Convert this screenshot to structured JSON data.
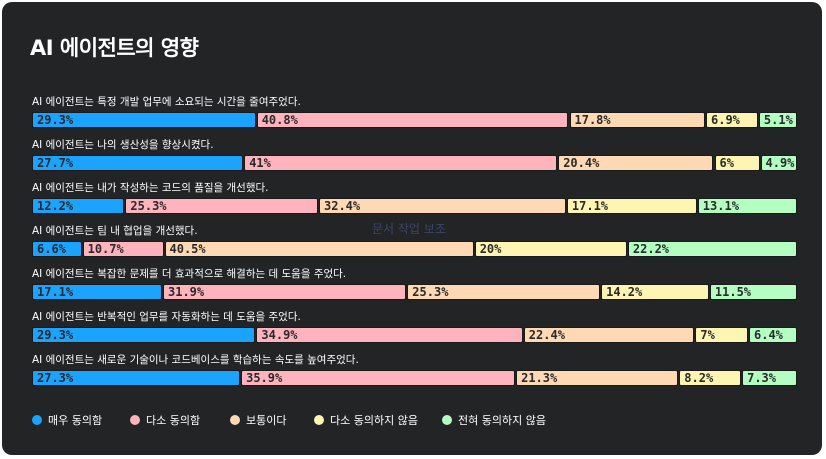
{
  "chart_data": {
    "type": "bar",
    "title": "AI 에이전트의 영향",
    "xlim": [
      0,
      100
    ],
    "categories": [
      "AI 에이전트는 특정 개발 업무에 소요되는 시간을 줄여주었다.",
      "AI 에이전트는 나의 생산성을 향상시켰다.",
      "AI 에이전트는 내가 작성하는 코드의 품질을 개선했다.",
      "AI 에이전트는 팀 내 협업을 개선했다.",
      "AI 에이전트는 복잡한 문제를 더 효과적으로 해결하는 데 도움을 주었다.",
      "AI 에이전트는 반복적인 업무를 자동화하는 데 도움을 주었다.",
      "AI 에이전트는 새로운 기술이나 코드베이스를 학습하는 속도를 높여주었다."
    ],
    "series": [
      {
        "name": "매우 동의함",
        "color": "#1aa3ff",
        "values": [
          29.3,
          27.7,
          12.2,
          6.6,
          17.1,
          29.3,
          27.3
        ]
      },
      {
        "name": "다소 동의함",
        "color": "#ffb3bd",
        "values": [
          40.8,
          41,
          25.3,
          10.7,
          31.9,
          34.9,
          35.9
        ]
      },
      {
        "name": "보통이다",
        "color": "#ffd9b3",
        "values": [
          17.8,
          20.4,
          32.4,
          40.5,
          25.3,
          22.4,
          21.3
        ]
      },
      {
        "name": "다소 동의하지 않음",
        "color": "#fff5b3",
        "values": [
          6.9,
          6,
          17.1,
          20,
          14.2,
          7,
          8.2
        ]
      },
      {
        "name": "전혀 동의하지 않음",
        "color": "#b3ffc2",
        "values": [
          5.1,
          4.9,
          13.1,
          22.2,
          11.5,
          6.4,
          7.3
        ]
      }
    ],
    "labels": [
      [
        "29.3%",
        "40.8%",
        "17.8%",
        "6.9%",
        "5.1%"
      ],
      [
        "27.7%",
        "41%",
        "20.4%",
        "6%",
        "4.9%"
      ],
      [
        "12.2%",
        "25.3%",
        "32.4%",
        "17.1%",
        "13.1%"
      ],
      [
        "6.6%",
        "10.7%",
        "40.5%",
        "20%",
        "22.2%"
      ],
      [
        "17.1%",
        "31.9%",
        "25.3%",
        "14.2%",
        "11.5%"
      ],
      [
        "29.3%",
        "34.9%",
        "22.4%",
        "7%",
        "6.4%"
      ],
      [
        "27.3%",
        "35.9%",
        "21.3%",
        "8.2%",
        "7.3%"
      ]
    ],
    "legend": "bottom-left",
    "grid": false
  },
  "watermark": "문서 작업 보조"
}
